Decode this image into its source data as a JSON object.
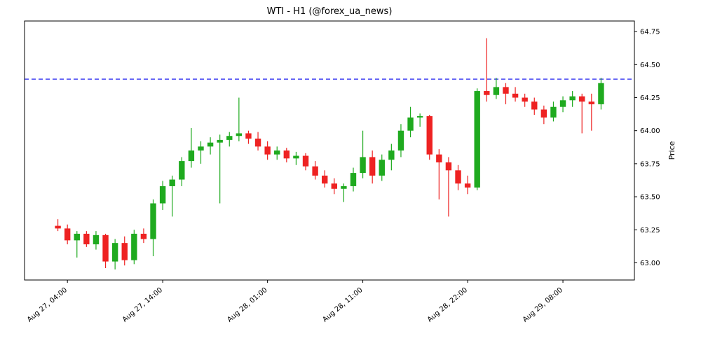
{
  "chart_data": {
    "type": "candlestick",
    "title": "WTI - H1 (@forex_ua_news)",
    "ylabel": "Price",
    "ylim": [
      62.87,
      64.83
    ],
    "xlim": [
      -3.5,
      60.5
    ],
    "yticks": [
      63.0,
      63.25,
      63.5,
      63.75,
      64.0,
      64.25,
      64.5,
      64.75
    ],
    "xticks": [
      {
        "index": 1,
        "label": "Aug 27, 04:00"
      },
      {
        "index": 11,
        "label": "Aug 27, 14:00"
      },
      {
        "index": 22,
        "label": "Aug 28, 01:00"
      },
      {
        "index": 32,
        "label": "Aug 28, 11:00"
      },
      {
        "index": 43,
        "label": "Aug 28, 22:00"
      },
      {
        "index": 53,
        "label": "Aug 29, 08:00"
      }
    ],
    "hline": {
      "value": 64.39,
      "color": "#0000ee",
      "style": "dashed"
    },
    "colors": {
      "up": "#1faa1f",
      "down": "#ee2222",
      "axis": "#000000"
    },
    "legend": null,
    "grid": false,
    "candles_ohlc": [
      [
        63.28,
        63.33,
        63.24,
        63.26
      ],
      [
        63.26,
        63.29,
        63.14,
        63.17
      ],
      [
        63.17,
        63.24,
        63.04,
        63.22
      ],
      [
        63.22,
        63.24,
        63.12,
        63.14
      ],
      [
        63.14,
        63.24,
        63.1,
        63.21
      ],
      [
        63.21,
        63.22,
        62.96,
        63.01
      ],
      [
        63.01,
        63.18,
        62.95,
        63.15
      ],
      [
        63.15,
        63.2,
        62.98,
        63.02
      ],
      [
        63.02,
        63.25,
        62.99,
        63.22
      ],
      [
        63.22,
        63.26,
        63.15,
        63.18
      ],
      [
        63.18,
        63.48,
        63.05,
        63.45
      ],
      [
        63.45,
        63.62,
        63.4,
        63.58
      ],
      [
        63.58,
        63.66,
        63.35,
        63.63
      ],
      [
        63.63,
        63.8,
        63.58,
        63.77
      ],
      [
        63.77,
        64.02,
        63.72,
        63.85
      ],
      [
        63.85,
        63.92,
        63.75,
        63.88
      ],
      [
        63.88,
        63.95,
        63.82,
        63.91
      ],
      [
        63.91,
        63.97,
        63.45,
        63.93
      ],
      [
        63.93,
        63.99,
        63.88,
        63.96
      ],
      [
        63.96,
        64.25,
        63.92,
        63.98
      ],
      [
        63.98,
        64.0,
        63.9,
        63.94
      ],
      [
        63.94,
        63.99,
        63.85,
        63.88
      ],
      [
        63.88,
        63.92,
        63.78,
        63.82
      ],
      [
        63.82,
        63.88,
        63.78,
        63.85
      ],
      [
        63.85,
        63.87,
        63.76,
        63.79
      ],
      [
        63.79,
        63.84,
        63.74,
        63.81
      ],
      [
        63.81,
        63.83,
        63.7,
        63.73
      ],
      [
        63.73,
        63.77,
        63.63,
        63.66
      ],
      [
        63.66,
        63.7,
        63.57,
        63.6
      ],
      [
        63.6,
        63.64,
        63.52,
        63.56
      ],
      [
        63.56,
        63.6,
        63.46,
        63.58
      ],
      [
        63.58,
        63.72,
        63.54,
        63.68
      ],
      [
        63.68,
        64.0,
        63.64,
        63.8
      ],
      [
        63.8,
        63.85,
        63.6,
        63.66
      ],
      [
        63.66,
        63.82,
        63.62,
        63.78
      ],
      [
        63.78,
        63.9,
        63.7,
        63.85
      ],
      [
        63.85,
        64.05,
        63.8,
        64.0
      ],
      [
        64.0,
        64.18,
        63.95,
        64.1
      ],
      [
        64.1,
        64.13,
        64.03,
        64.11
      ],
      [
        64.11,
        64.12,
        63.78,
        63.82
      ],
      [
        63.82,
        63.86,
        63.48,
        63.76
      ],
      [
        63.76,
        63.8,
        63.35,
        63.7
      ],
      [
        63.7,
        63.74,
        63.55,
        63.6
      ],
      [
        63.6,
        63.66,
        63.52,
        63.57
      ],
      [
        63.57,
        64.32,
        63.55,
        64.3
      ],
      [
        64.3,
        64.7,
        64.22,
        64.27
      ],
      [
        64.27,
        64.4,
        64.24,
        64.33
      ],
      [
        64.33,
        64.36,
        64.2,
        64.28
      ],
      [
        64.28,
        64.33,
        64.22,
        64.25
      ],
      [
        64.25,
        64.28,
        64.18,
        64.22
      ],
      [
        64.22,
        64.25,
        64.12,
        64.16
      ],
      [
        64.16,
        64.19,
        64.05,
        64.1
      ],
      [
        64.1,
        64.22,
        64.07,
        64.18
      ],
      [
        64.18,
        64.26,
        64.14,
        64.23
      ],
      [
        64.23,
        64.3,
        64.18,
        64.26
      ],
      [
        64.26,
        64.28,
        63.98,
        64.22
      ],
      [
        64.22,
        64.28,
        64.0,
        64.2
      ],
      [
        64.2,
        64.4,
        64.16,
        64.36
      ]
    ]
  }
}
